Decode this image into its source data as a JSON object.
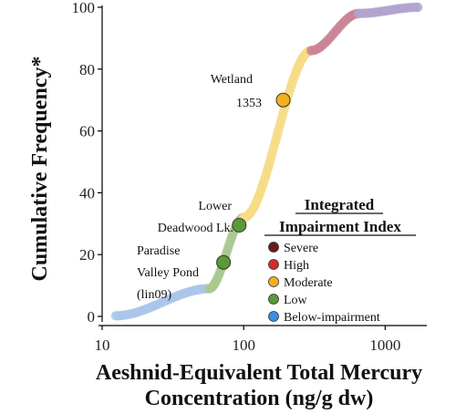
{
  "chart_data": {
    "type": "scatter",
    "x_scale": "log",
    "xlim": [
      10,
      1800
    ],
    "ylim": [
      0,
      100
    ],
    "xlabel_line1": "Aeshnid-Equivalent Total Mercury",
    "xlabel_line2": "Concentration (ng/g dw)",
    "ylabel": "Cumulative Frequency*",
    "x_ticks": [
      {
        "value": 10,
        "label": "10"
      },
      {
        "value": 100,
        "label": "100"
      },
      {
        "value": 1000,
        "label": "1000"
      }
    ],
    "y_ticks": [
      {
        "value": 0,
        "label": "0"
      },
      {
        "value": 20,
        "label": "20"
      },
      {
        "value": 40,
        "label": "40"
      },
      {
        "value": 60,
        "label": "60"
      },
      {
        "value": 80,
        "label": "80"
      },
      {
        "value": 100,
        "label": "100"
      }
    ],
    "legend": {
      "title_line1": "Integrated",
      "title_line2": "Impairment Index",
      "items": [
        {
          "category": "severe",
          "label": "Severe",
          "color": "#6b1a1a"
        },
        {
          "category": "high",
          "label": "High",
          "color": "#d62b2b"
        },
        {
          "category": "moderate",
          "label": "Moderate",
          "color": "#f2b01e"
        },
        {
          "category": "low",
          "label": "Low",
          "color": "#5b9a35"
        },
        {
          "category": "below",
          "label": "Below-impairment",
          "color": "#3a8fe0"
        }
      ]
    },
    "segments": [
      {
        "category": "below",
        "color": "#a9c6ea",
        "x_start": 12.5,
        "x_end": 57,
        "y_start": 0.2,
        "y_end": 9
      },
      {
        "category": "low",
        "color": "#a9c890",
        "x_start": 57,
        "x_end": 100,
        "y_start": 9,
        "y_end": 32
      },
      {
        "category": "moderate",
        "color": "#f7dc86",
        "x_start": 100,
        "x_end": 300,
        "y_start": 32,
        "y_end": 86
      },
      {
        "category": "high",
        "color": "#c98595",
        "x_start": 300,
        "x_end": 650,
        "y_start": 86,
        "y_end": 98
      },
      {
        "category": "severe",
        "color": "#b3a3cf",
        "x_start": 650,
        "x_end": 1700,
        "y_start": 98,
        "y_end": 100
      }
    ],
    "highlighted_points": [
      {
        "name_line1": "Wetland",
        "name_line2": "1353",
        "name_line3": "",
        "x": 190,
        "y": 70,
        "category": "moderate",
        "color": "#f2b01e"
      },
      {
        "name_line1": "Lower",
        "name_line2": "Deadwood Lk.",
        "name_line3": "",
        "x": 93,
        "y": 29.5,
        "category": "low",
        "color": "#5b9a35"
      },
      {
        "name_line1": "Paradise",
        "name_line2": "Valley Pond",
        "name_line3": "(lin09)",
        "x": 72,
        "y": 17.5,
        "category": "low",
        "color": "#5b9a35"
      }
    ]
  }
}
